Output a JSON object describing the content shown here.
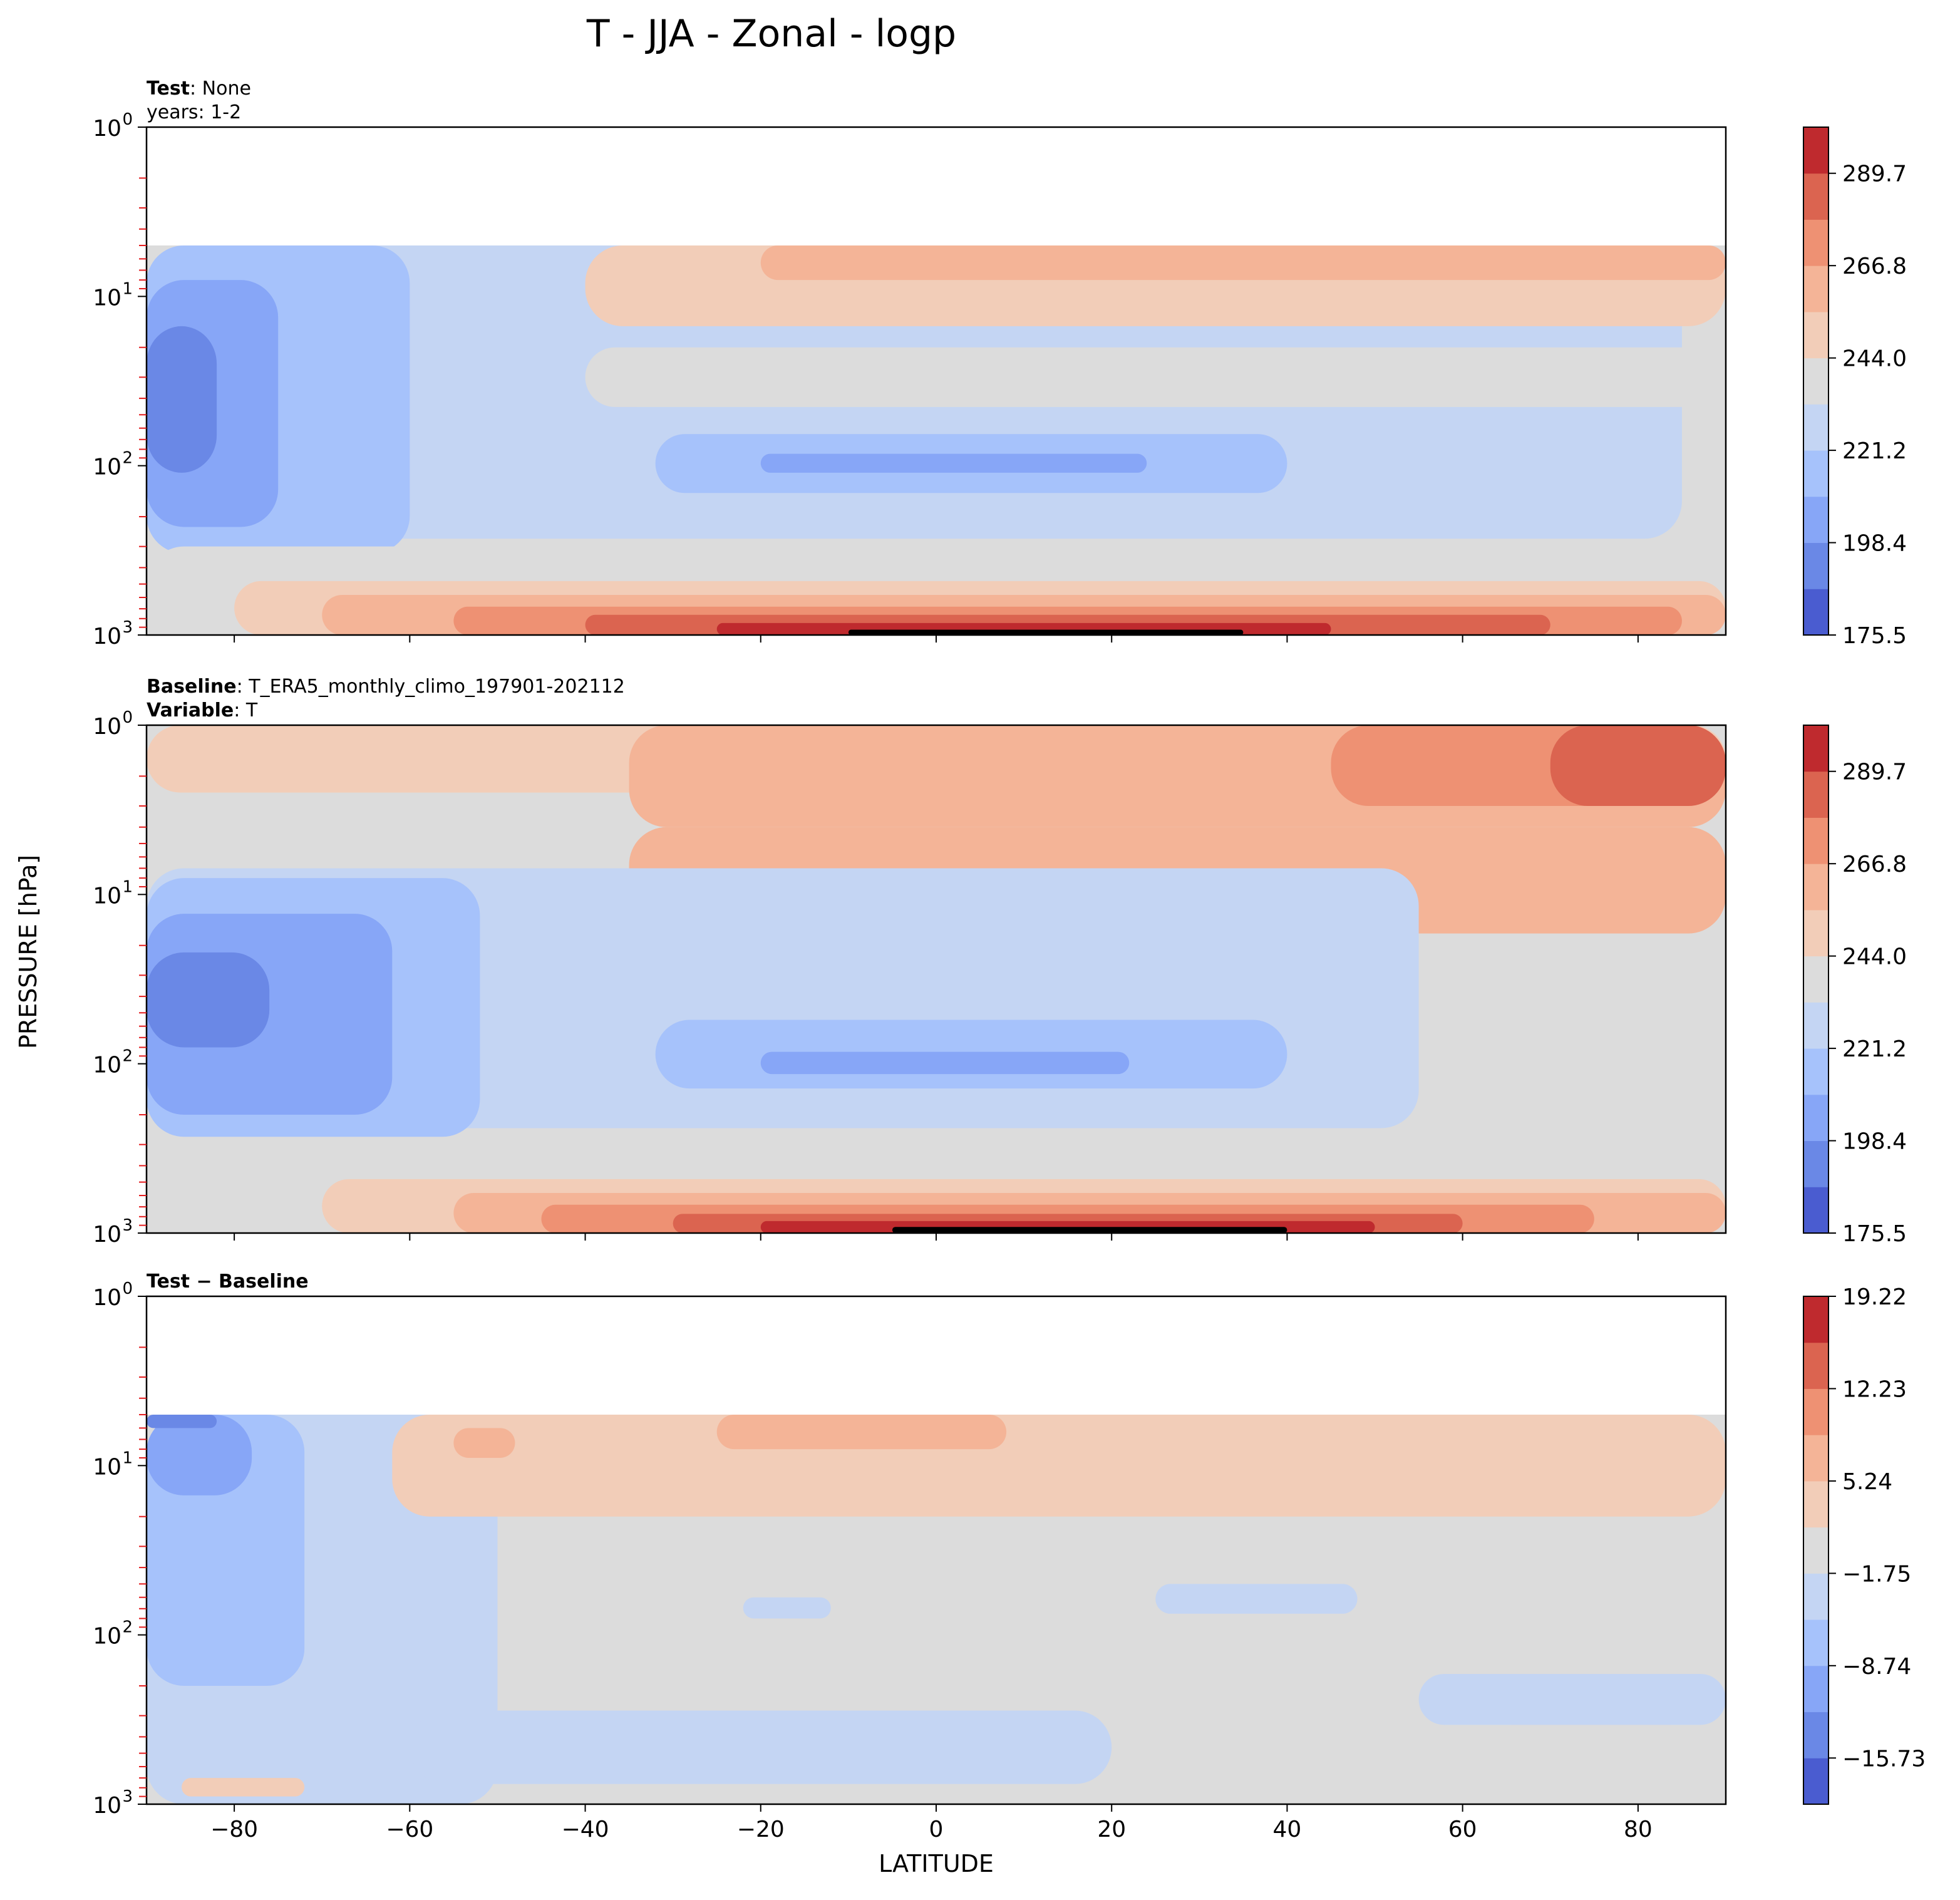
{
  "figure": {
    "suptitle": "T - JJA - Zonal - logp",
    "shared_ylabel": "PRESSURE [hPa]",
    "shared_xlabel": "LATITUDE"
  },
  "chart_data": [
    {
      "type": "contourf",
      "panel": "test",
      "title_lines": [
        {
          "bold": "Test",
          "rest": ": None"
        },
        {
          "bold": "",
          "rest": "years: 1-2"
        }
      ],
      "x_range": [
        -90,
        90
      ],
      "x_ticks": [
        -80,
        -60,
        -40,
        -20,
        0,
        20,
        40,
        60,
        80
      ],
      "x_tick_labels": [
        "−80",
        "−60",
        "−40",
        "−20",
        "0",
        "20",
        "40",
        "60",
        "80"
      ],
      "y_scale": "log",
      "y_range": [
        1000,
        1
      ],
      "y_ticks": [
        {
          "mantissa": "10",
          "exp": "0",
          "value": 1
        },
        {
          "mantissa": "10",
          "exp": "1",
          "value": 10
        },
        {
          "mantissa": "10",
          "exp": "2",
          "value": 100
        },
        {
          "mantissa": "10",
          "exp": "3",
          "value": 1000
        }
      ],
      "data_top_hpa": 5,
      "red_minor_ticks": true,
      "colorbar": {
        "ticks": [
          "175.5",
          "198.4",
          "221.2",
          "244.0",
          "266.8",
          "289.7"
        ],
        "tick_levels": [
          0,
          2,
          4,
          6,
          8,
          10
        ],
        "levels": [
          175.5,
          186.9,
          198.4,
          209.8,
          221.2,
          232.6,
          244.0,
          255.4,
          266.8,
          278.3,
          289.7,
          301.1
        ]
      },
      "regions": [
        {
          "level": 4,
          "p_top": 5,
          "p_bot": 270,
          "lat_from": -90,
          "lat_to": 85
        },
        {
          "level": 3,
          "p_top": 5,
          "p_bot": 330,
          "lat_from": -90,
          "lat_to": -60
        },
        {
          "level": 2,
          "p_top": 8,
          "p_bot": 230,
          "lat_from": -90,
          "lat_to": -75
        },
        {
          "level": 1,
          "p_top": 15,
          "p_bot": 110,
          "lat_from": -90,
          "lat_to": -82
        },
        {
          "level": 3,
          "p_top": 65,
          "p_bot": 145,
          "lat_from": -32,
          "lat_to": 40
        },
        {
          "level": 2,
          "p_top": 85,
          "p_bot": 110,
          "lat_from": -20,
          "lat_to": 24
        },
        {
          "level": 5,
          "p_top": 20,
          "p_bot": 45,
          "lat_from": -40,
          "lat_to": 90
        },
        {
          "level": 6,
          "p_top": 5,
          "p_bot": 15,
          "lat_from": -40,
          "lat_to": 90
        },
        {
          "level": 7,
          "p_top": 5,
          "p_bot": 8,
          "lat_from": -20,
          "lat_to": 90
        },
        {
          "level": 5,
          "p_top": 300,
          "p_bot": 1000,
          "lat_from": -90,
          "lat_to": 90
        },
        {
          "level": 6,
          "p_top": 480,
          "p_bot": 1000,
          "lat_from": -80,
          "lat_to": 90
        },
        {
          "level": 7,
          "p_top": 580,
          "p_bot": 1000,
          "lat_from": -70,
          "lat_to": 90
        },
        {
          "level": 8,
          "p_top": 680,
          "p_bot": 1000,
          "lat_from": -55,
          "lat_to": 85
        },
        {
          "level": 9,
          "p_top": 760,
          "p_bot": 1000,
          "lat_from": -40,
          "lat_to": 70
        },
        {
          "level": 10,
          "p_top": 850,
          "p_bot": 1000,
          "lat_from": -25,
          "lat_to": 45
        },
        {
          "level": 11,
          "p_top": 930,
          "p_bot": 1000,
          "lat_from": -10,
          "lat_to": 35
        }
      ]
    },
    {
      "type": "contourf",
      "panel": "baseline",
      "title_lines": [
        {
          "bold": "Baseline",
          "rest": ": T_ERA5_monthly_climo_197901-202112"
        },
        {
          "bold": "Variable",
          "rest": ": T"
        }
      ],
      "x_range": [
        -90,
        90
      ],
      "x_ticks": [
        -80,
        -60,
        -40,
        -20,
        0,
        20,
        40,
        60,
        80
      ],
      "x_tick_labels": [
        "−80",
        "−60",
        "−40",
        "−20",
        "0",
        "20",
        "40",
        "60",
        "80"
      ],
      "y_scale": "log",
      "y_range": [
        1000,
        1
      ],
      "y_ticks": [
        {
          "mantissa": "10",
          "exp": "0",
          "value": 1
        },
        {
          "mantissa": "10",
          "exp": "1",
          "value": 10
        },
        {
          "mantissa": "10",
          "exp": "2",
          "value": 100
        },
        {
          "mantissa": "10",
          "exp": "3",
          "value": 1000
        }
      ],
      "data_top_hpa": 1,
      "red_minor_ticks": true,
      "colorbar": {
        "ticks": [
          "175.5",
          "198.4",
          "221.2",
          "244.0",
          "266.8",
          "289.7"
        ],
        "tick_levels": [
          0,
          2,
          4,
          6,
          8,
          10
        ],
        "levels": [
          175.5,
          186.9,
          198.4,
          209.8,
          221.2,
          232.6,
          244.0,
          255.4,
          266.8,
          278.3,
          289.7,
          301.1
        ]
      },
      "regions": [
        {
          "level": 6,
          "p_top": 1,
          "p_bot": 2.5,
          "lat_from": -90,
          "lat_to": 90
        },
        {
          "level": 7,
          "p_top": 4,
          "p_bot": 17,
          "lat_from": -35,
          "lat_to": 90
        },
        {
          "level": 7,
          "p_top": 1,
          "p_bot": 4,
          "lat_from": -35,
          "lat_to": 90
        },
        {
          "level": 8,
          "p_top": 1,
          "p_bot": 3,
          "lat_from": 45,
          "lat_to": 90
        },
        {
          "level": 9,
          "p_top": 1,
          "p_bot": 3,
          "lat_from": 70,
          "lat_to": 90
        },
        {
          "level": 5,
          "p_top": 4,
          "p_bot": 15,
          "lat_from": -90,
          "lat_to": -40
        },
        {
          "level": 4,
          "p_top": 7,
          "p_bot": 240,
          "lat_from": -90,
          "lat_to": 55
        },
        {
          "level": 3,
          "p_top": 8,
          "p_bot": 270,
          "lat_from": -90,
          "lat_to": -52
        },
        {
          "level": 2,
          "p_top": 13,
          "p_bot": 200,
          "lat_from": -90,
          "lat_to": -62
        },
        {
          "level": 1,
          "p_top": 22,
          "p_bot": 80,
          "lat_from": -90,
          "lat_to": -76
        },
        {
          "level": 3,
          "p_top": 55,
          "p_bot": 140,
          "lat_from": -32,
          "lat_to": 40
        },
        {
          "level": 2,
          "p_top": 85,
          "p_bot": 115,
          "lat_from": -20,
          "lat_to": 22
        },
        {
          "level": 5,
          "p_top": 300,
          "p_bot": 1000,
          "lat_from": -90,
          "lat_to": 90
        },
        {
          "level": 6,
          "p_top": 480,
          "p_bot": 1000,
          "lat_from": -70,
          "lat_to": 90
        },
        {
          "level": 7,
          "p_top": 580,
          "p_bot": 1000,
          "lat_from": -55,
          "lat_to": 90
        },
        {
          "level": 8,
          "p_top": 680,
          "p_bot": 1000,
          "lat_from": -45,
          "lat_to": 75
        },
        {
          "level": 9,
          "p_top": 770,
          "p_bot": 1000,
          "lat_from": -30,
          "lat_to": 60
        },
        {
          "level": 10,
          "p_top": 850,
          "p_bot": 1000,
          "lat_from": -20,
          "lat_to": 50
        },
        {
          "level": 11,
          "p_top": 920,
          "p_bot": 1000,
          "lat_from": -5,
          "lat_to": 40
        }
      ]
    },
    {
      "type": "contourf",
      "panel": "difference",
      "title_lines": [
        {
          "bold": "Test − Baseline",
          "rest": ""
        }
      ],
      "x_range": [
        -90,
        90
      ],
      "x_ticks": [
        -80,
        -60,
        -40,
        -20,
        0,
        20,
        40,
        60,
        80
      ],
      "x_tick_labels": [
        "−80",
        "−60",
        "−40",
        "−20",
        "0",
        "20",
        "40",
        "60",
        "80"
      ],
      "y_scale": "log",
      "y_range": [
        1000,
        1
      ],
      "y_ticks": [
        {
          "mantissa": "10",
          "exp": "0",
          "value": 1
        },
        {
          "mantissa": "10",
          "exp": "1",
          "value": 10
        },
        {
          "mantissa": "10",
          "exp": "2",
          "value": 100
        },
        {
          "mantissa": "10",
          "exp": "3",
          "value": 1000
        }
      ],
      "data_top_hpa": 5,
      "red_minor_ticks": true,
      "xlabel": "LATITUDE",
      "colorbar": {
        "ticks": [
          "−15.73",
          "−8.74",
          "−1.75",
          "5.24",
          "12.23",
          "19.22"
        ],
        "tick_levels": [
          1,
          3,
          5,
          7,
          9,
          11
        ],
        "levels": [
          -19.22,
          -15.73,
          -12.23,
          -8.74,
          -5.24,
          -1.75,
          1.75,
          5.24,
          8.74,
          12.23,
          15.73,
          19.22
        ]
      },
      "regions": [
        {
          "level": 4,
          "p_top": 5,
          "p_bot": 1000,
          "lat_from": -90,
          "lat_to": -50
        },
        {
          "level": 3,
          "p_top": 5,
          "p_bot": 200,
          "lat_from": -90,
          "lat_to": -72
        },
        {
          "level": 2,
          "p_top": 5,
          "p_bot": 15,
          "lat_from": -90,
          "lat_to": -78
        },
        {
          "level": 1,
          "p_top": 5,
          "p_bot": 6,
          "lat_from": -90,
          "lat_to": -82
        },
        {
          "level": 6,
          "p_top": 5,
          "p_bot": 20,
          "lat_from": -62,
          "lat_to": 90
        },
        {
          "level": 7,
          "p_top": 6,
          "p_bot": 9,
          "lat_from": -55,
          "lat_to": -48
        },
        {
          "level": 7,
          "p_top": 5,
          "p_bot": 8,
          "lat_from": -25,
          "lat_to": 8
        },
        {
          "level": 4,
          "p_top": 50,
          "p_bot": 75,
          "lat_from": 25,
          "lat_to": 48
        },
        {
          "level": 4,
          "p_top": 60,
          "p_bot": 80,
          "lat_from": -22,
          "lat_to": -12
        },
        {
          "level": 4,
          "p_top": 170,
          "p_bot": 340,
          "lat_from": 55,
          "lat_to": 90
        },
        {
          "level": 4,
          "p_top": 280,
          "p_bot": 760,
          "lat_from": -60,
          "lat_to": 20
        },
        {
          "level": 6,
          "p_top": 700,
          "p_bot": 900,
          "lat_from": -86,
          "lat_to": -72
        }
      ]
    }
  ]
}
